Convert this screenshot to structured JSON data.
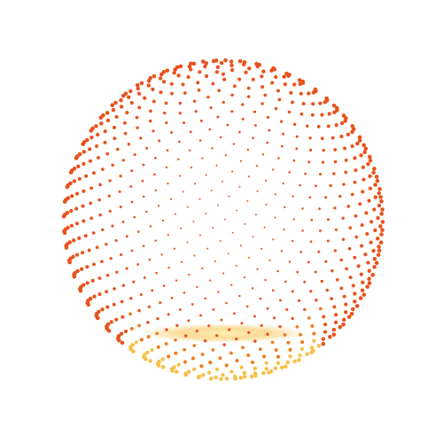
{
  "scene": {
    "subject": "dotted-sphere",
    "background_color": "#ffffff",
    "dot_colors": {
      "primary": "#e8521c",
      "secondary": "#f07a1a",
      "highlight": "#f6c14a",
      "core": "#ffe9a8"
    }
  }
}
